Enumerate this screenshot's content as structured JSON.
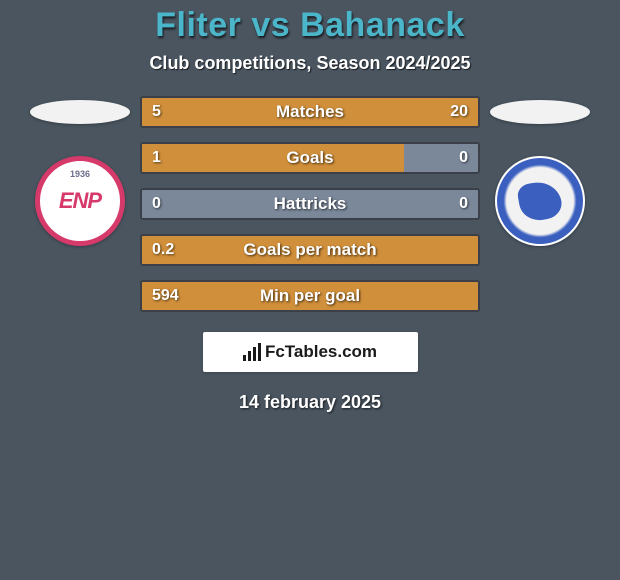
{
  "title": "Fliter vs Bahanack",
  "title_color": "#4bb6c9",
  "subtitle": "Club competitions, Season 2024/2025",
  "background_color": "#4a5560",
  "player_left": {
    "flag_color": "#f2f2f2",
    "badge_border_color": "#d63a6a",
    "badge_text": "ENP",
    "badge_year": "1936"
  },
  "player_right": {
    "flag_color": "#f2f2f2",
    "badge_ring_color": "#3a5fbf"
  },
  "bars": {
    "bar_bg_color": "#7b889a",
    "border_color": "#3b3f47",
    "left_fill_color": "#d08f3a",
    "right_fill_color": "#d08f3a"
  },
  "stats": [
    {
      "label": "Matches",
      "left_value": "5",
      "right_value": "20",
      "left_pct": 20,
      "right_pct": 80
    },
    {
      "label": "Goals",
      "left_value": "1",
      "right_value": "0",
      "left_pct": 78,
      "right_pct": 0
    },
    {
      "label": "Hattricks",
      "left_value": "0",
      "right_value": "0",
      "left_pct": 0,
      "right_pct": 0
    },
    {
      "label": "Goals per match",
      "left_value": "0.2",
      "right_value": "",
      "left_pct": 100,
      "right_pct": 0
    },
    {
      "label": "Min per goal",
      "left_value": "594",
      "right_value": "",
      "left_pct": 100,
      "right_pct": 0
    }
  ],
  "attribution": "FcTables.com",
  "date": "14 february 2025"
}
